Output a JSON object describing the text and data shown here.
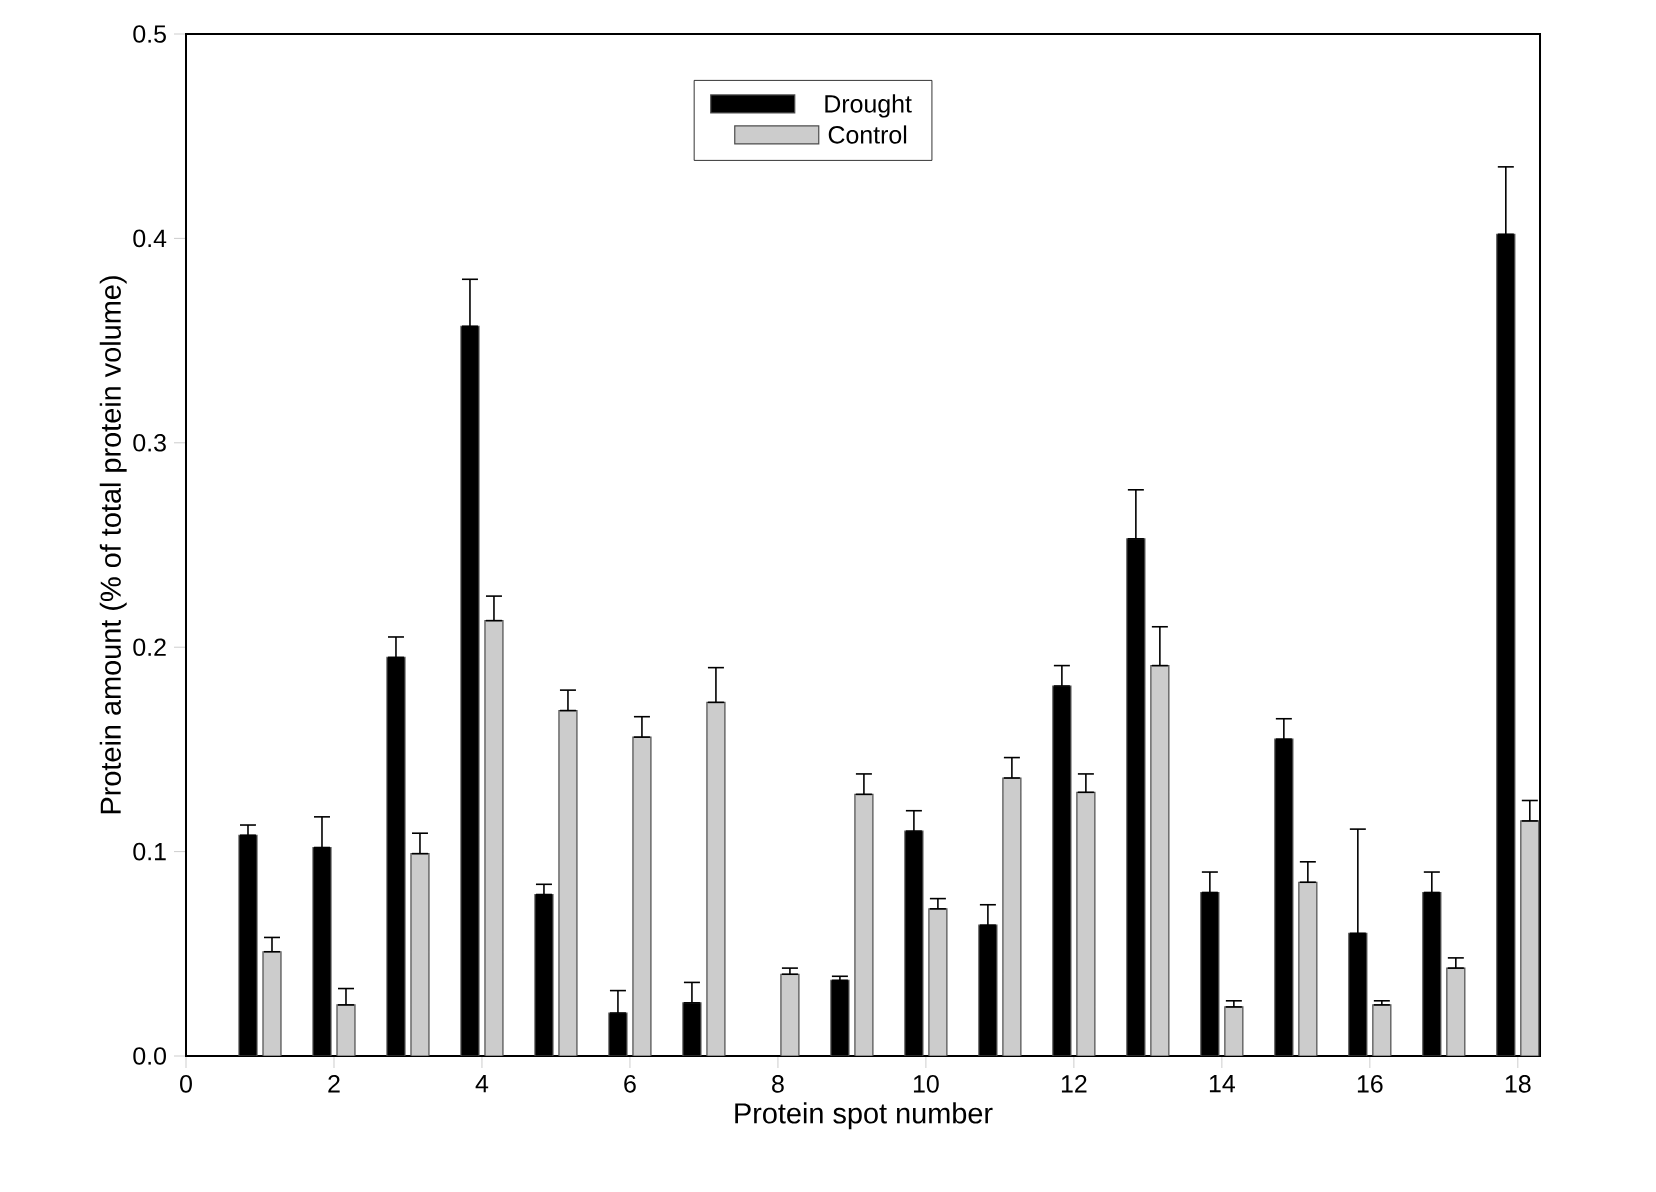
{
  "chart_data": {
    "type": "bar",
    "xlabel": "Protein spot number",
    "ylabel": "Protein amount (% of total protein volume)",
    "x": [
      1,
      2,
      3,
      4,
      5,
      6,
      7,
      8,
      9,
      10,
      11,
      12,
      13,
      14,
      15,
      16,
      17,
      18
    ],
    "xlim": [
      0,
      18.3
    ],
    "xticks": [
      0,
      2,
      4,
      6,
      8,
      10,
      12,
      14,
      16,
      18
    ],
    "ylim": [
      0,
      0.5
    ],
    "yticks": [
      {
        "value": 0,
        "label": "0.0"
      },
      0.1,
      0.2,
      0.3,
      0.4,
      0.5
    ],
    "legend": "top",
    "grid": false,
    "series": [
      {
        "name": "Drought",
        "color": "#000000",
        "values": [
          0.108,
          0.102,
          0.195,
          0.357,
          0.079,
          0.021,
          0.026,
          null,
          0.037,
          0.11,
          0.064,
          0.181,
          0.253,
          0.08,
          0.155,
          0.06,
          0.08,
          0.402
        ],
        "errors": [
          [
            0.108,
            0.113
          ],
          [
            0.102,
            0.117
          ],
          [
            0.195,
            0.205
          ],
          [
            0.357,
            0.38
          ],
          [
            0.079,
            0.084
          ],
          [
            0.021,
            0.032
          ],
          [
            0.026,
            0.036
          ],
          null,
          [
            0.037,
            0.039
          ],
          [
            0.11,
            0.12
          ],
          [
            0.064,
            0.074
          ],
          [
            0.181,
            0.191
          ],
          [
            0.253,
            0.277
          ],
          [
            0.08,
            0.09
          ],
          [
            0.155,
            0.165
          ],
          [
            0.06,
            0.111
          ],
          [
            0.08,
            0.09
          ],
          [
            0.402,
            0.435
          ]
        ]
      },
      {
        "name": "Control",
        "color": "#cccccc",
        "values": [
          0.051,
          0.025,
          0.099,
          0.213,
          0.169,
          0.156,
          0.173,
          0.04,
          0.128,
          0.072,
          0.136,
          0.129,
          0.191,
          0.024,
          0.085,
          0.025,
          0.043,
          0.115
        ],
        "errors": [
          [
            0.051,
            0.058
          ],
          [
            0.025,
            0.033
          ],
          [
            0.099,
            0.109
          ],
          [
            0.213,
            0.225
          ],
          [
            0.169,
            0.179
          ],
          [
            0.156,
            0.166
          ],
          [
            0.173,
            0.19
          ],
          [
            0.04,
            0.043
          ],
          [
            0.128,
            0.138
          ],
          [
            0.072,
            0.077
          ],
          [
            0.136,
            0.146
          ],
          [
            0.129,
            0.138
          ],
          [
            0.191,
            0.21
          ],
          [
            0.024,
            0.027
          ],
          [
            0.085,
            0.095
          ],
          [
            0.025,
            0.027
          ],
          [
            0.043,
            0.048
          ],
          [
            0.115,
            0.125
          ]
        ]
      }
    ]
  }
}
